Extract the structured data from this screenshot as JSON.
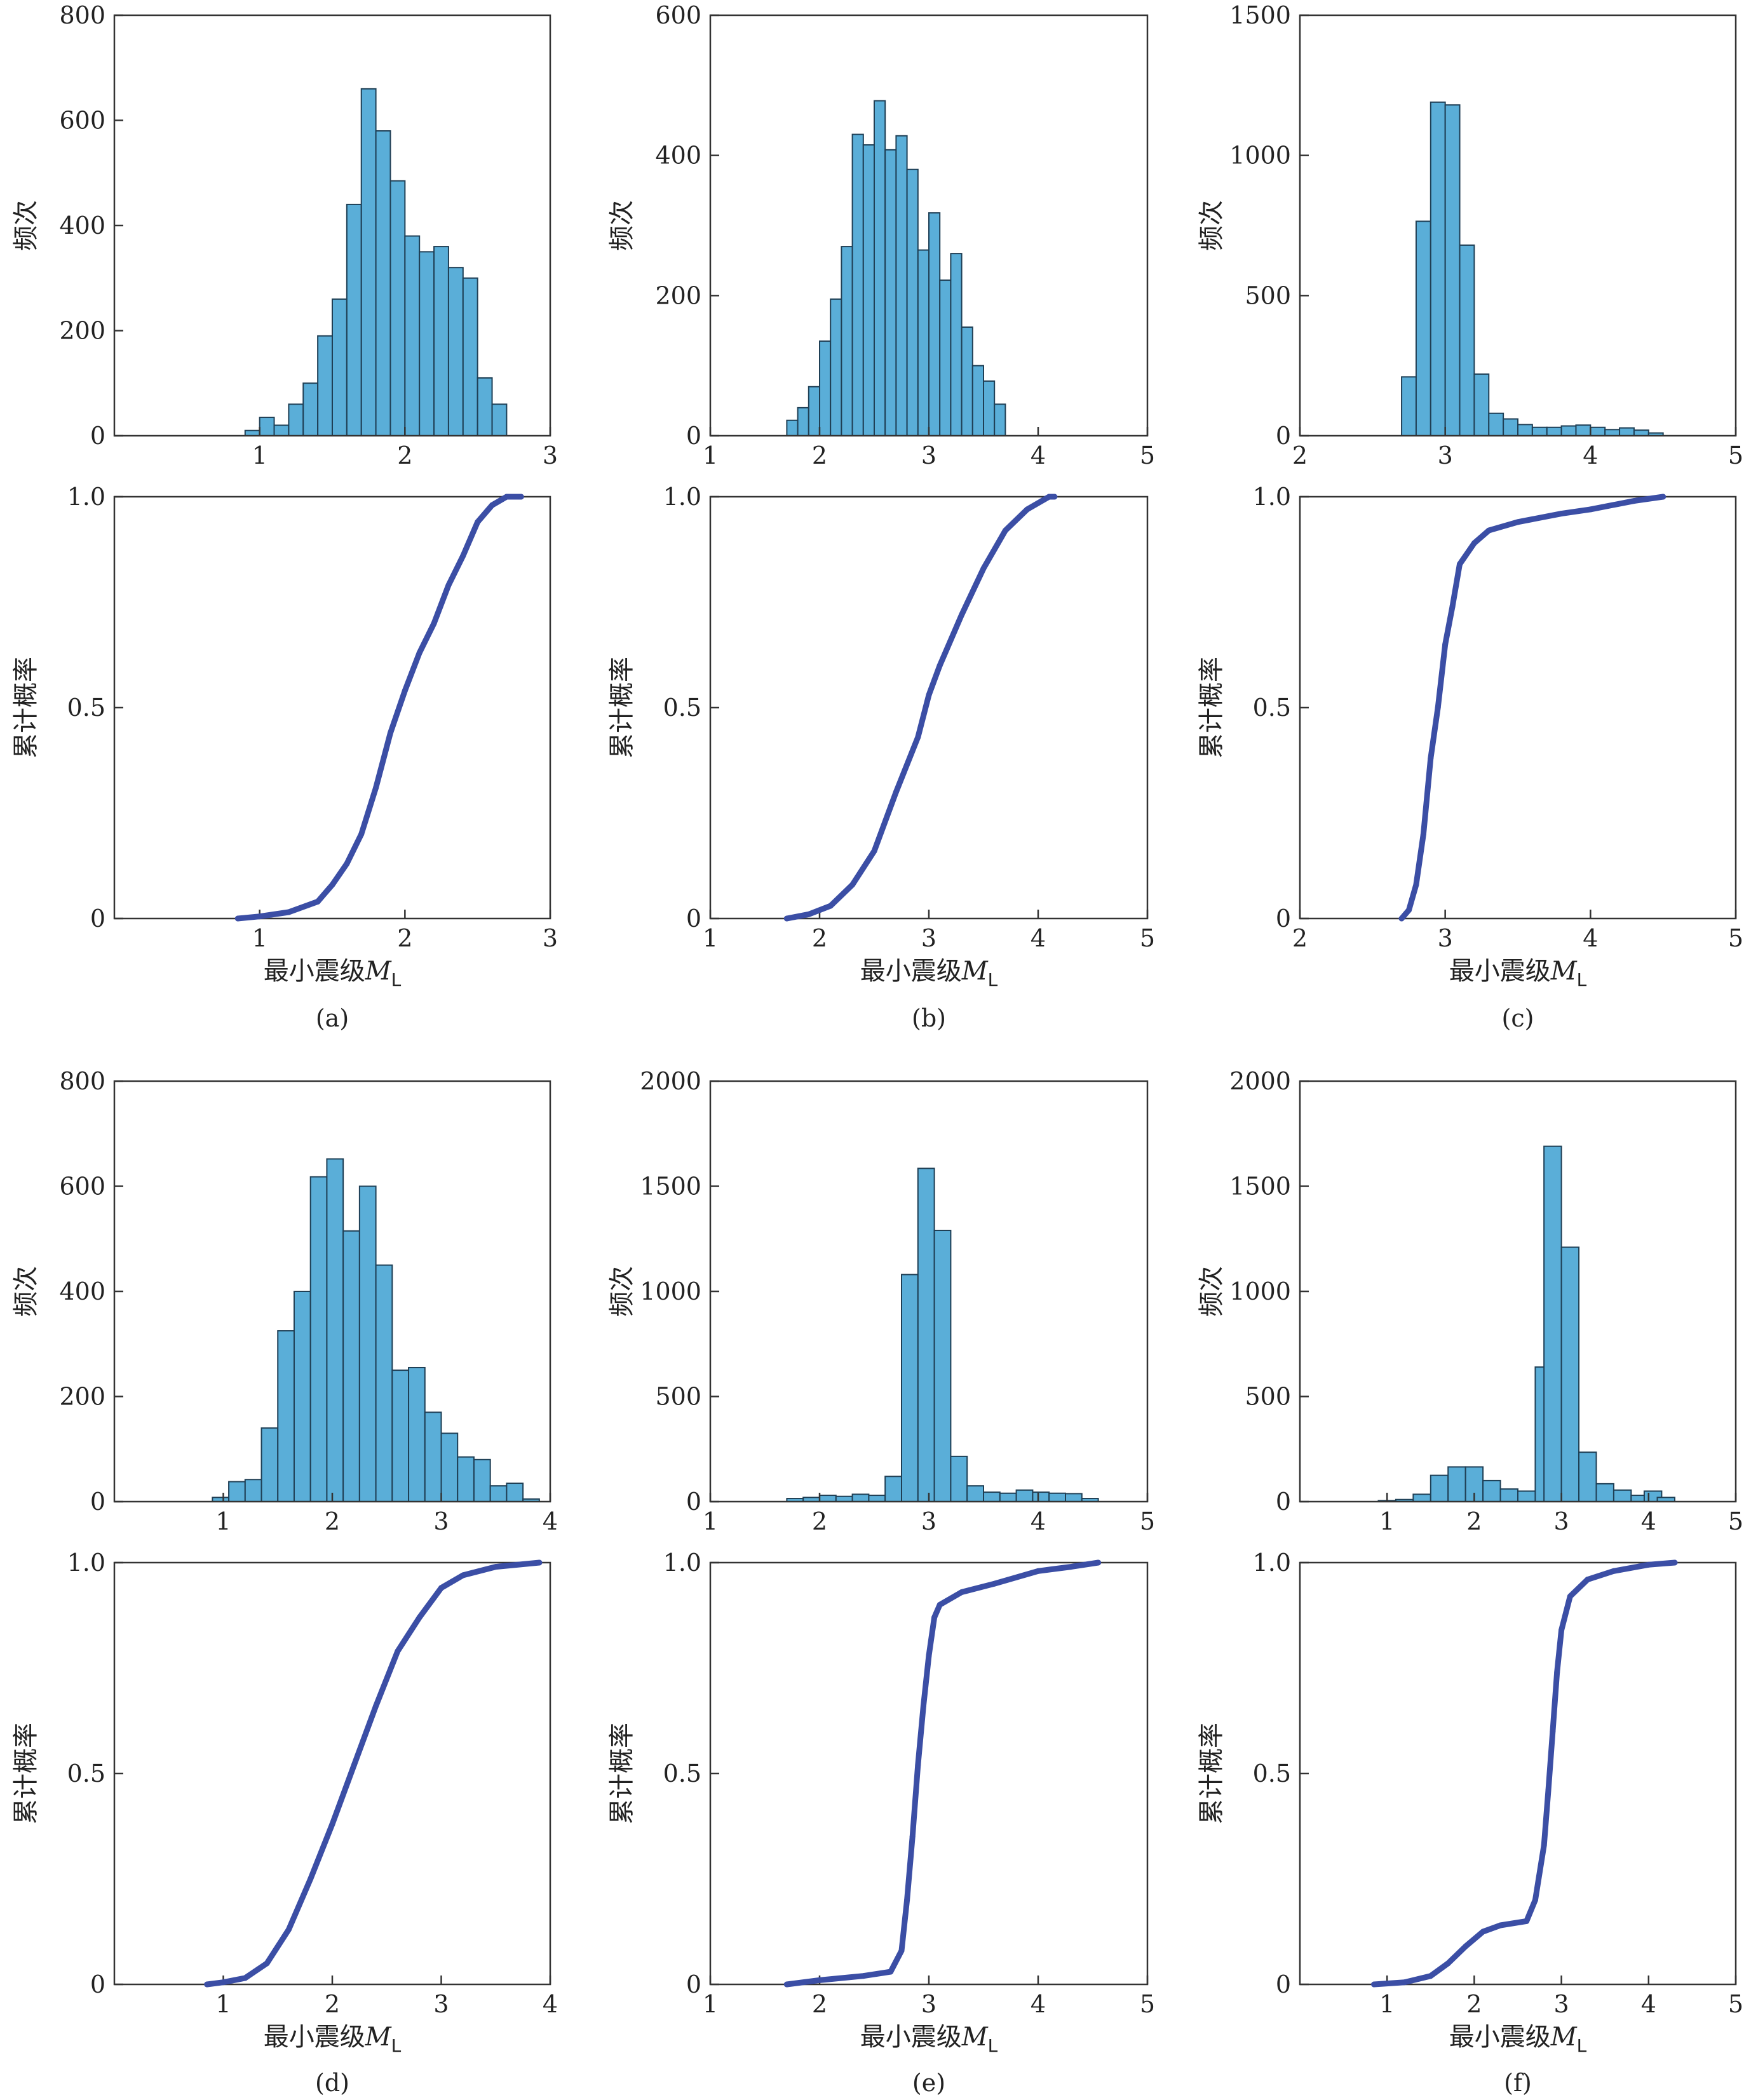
{
  "labels": {
    "hist_ylabel": "频次",
    "cdf_ylabel": "累计概率",
    "xlabel_main": "最小震级",
    "xlabel_symbol": "M",
    "xlabel_sub": "L"
  },
  "colors": {
    "bar_fill": "#5aaed8",
    "bar_edge": "#1f3f55",
    "cdf_line": "#3b4ea5"
  },
  "chart_data": [
    {
      "panel": "(a)",
      "type": "bar",
      "xlim": [
        0,
        3
      ],
      "hist": {
        "ylim": [
          0,
          800
        ],
        "yticks": [
          0,
          200,
          400,
          600,
          800
        ],
        "xticks": [
          1,
          2,
          3
        ],
        "bin_width": 0.1,
        "bins": [
          {
            "x0": 0.9,
            "value": 10
          },
          {
            "x0": 1.0,
            "value": 35
          },
          {
            "x0": 1.1,
            "value": 20
          },
          {
            "x0": 1.2,
            "value": 60
          },
          {
            "x0": 1.3,
            "value": 100
          },
          {
            "x0": 1.4,
            "value": 190
          },
          {
            "x0": 1.5,
            "value": 260
          },
          {
            "x0": 1.6,
            "value": 440
          },
          {
            "x0": 1.7,
            "value": 660
          },
          {
            "x0": 1.8,
            "value": 580
          },
          {
            "x0": 1.9,
            "value": 485
          },
          {
            "x0": 2.0,
            "value": 380
          },
          {
            "x0": 2.1,
            "value": 350
          },
          {
            "x0": 2.2,
            "value": 360
          },
          {
            "x0": 2.3,
            "value": 320
          },
          {
            "x0": 2.4,
            "value": 300
          },
          {
            "x0": 2.5,
            "value": 110
          },
          {
            "x0": 2.6,
            "value": 60
          }
        ]
      },
      "cdf": {
        "ylim": [
          0,
          1
        ],
        "yticks": [
          {
            "value": 0,
            "label": "0"
          },
          {
            "value": 0.5,
            "label": "0.5"
          },
          {
            "value": 1,
            "label": "1.0"
          }
        ],
        "xticks": [
          1,
          2,
          3
        ],
        "points": [
          [
            0.85,
            0
          ],
          [
            1.0,
            0.005
          ],
          [
            1.2,
            0.015
          ],
          [
            1.4,
            0.04
          ],
          [
            1.5,
            0.08
          ],
          [
            1.6,
            0.13
          ],
          [
            1.7,
            0.2
          ],
          [
            1.8,
            0.31
          ],
          [
            1.9,
            0.44
          ],
          [
            2.0,
            0.54
          ],
          [
            2.1,
            0.63
          ],
          [
            2.2,
            0.7
          ],
          [
            2.3,
            0.79
          ],
          [
            2.4,
            0.86
          ],
          [
            2.5,
            0.94
          ],
          [
            2.6,
            0.98
          ],
          [
            2.7,
            1.0
          ],
          [
            2.8,
            1.0
          ]
        ]
      }
    },
    {
      "panel": "(b)",
      "type": "bar",
      "xlim": [
        1,
        5
      ],
      "hist": {
        "ylim": [
          0,
          600
        ],
        "yticks": [
          0,
          200,
          400,
          600
        ],
        "xticks": [
          1,
          2,
          3,
          4,
          5
        ],
        "bin_width": 0.1,
        "bins": [
          {
            "x0": 1.7,
            "value": 22
          },
          {
            "x0": 1.8,
            "value": 40
          },
          {
            "x0": 1.9,
            "value": 70
          },
          {
            "x0": 2.0,
            "value": 135
          },
          {
            "x0": 2.1,
            "value": 195
          },
          {
            "x0": 2.2,
            "value": 270
          },
          {
            "x0": 2.3,
            "value": 430
          },
          {
            "x0": 2.4,
            "value": 415
          },
          {
            "x0": 2.5,
            "value": 478
          },
          {
            "x0": 2.6,
            "value": 408
          },
          {
            "x0": 2.7,
            "value": 428
          },
          {
            "x0": 2.8,
            "value": 380
          },
          {
            "x0": 2.9,
            "value": 265
          },
          {
            "x0": 3.0,
            "value": 318
          },
          {
            "x0": 3.1,
            "value": 222
          },
          {
            "x0": 3.2,
            "value": 260
          },
          {
            "x0": 3.3,
            "value": 155
          },
          {
            "x0": 3.4,
            "value": 100
          },
          {
            "x0": 3.5,
            "value": 78
          },
          {
            "x0": 3.6,
            "value": 45
          }
        ]
      },
      "cdf": {
        "ylim": [
          0,
          1
        ],
        "yticks": [
          {
            "value": 0,
            "label": "0"
          },
          {
            "value": 0.5,
            "label": "0.5"
          },
          {
            "value": 1,
            "label": "1.0"
          }
        ],
        "xticks": [
          1,
          2,
          3,
          4,
          5
        ],
        "points": [
          [
            1.7,
            0
          ],
          [
            1.9,
            0.01
          ],
          [
            2.1,
            0.03
          ],
          [
            2.3,
            0.08
          ],
          [
            2.5,
            0.16
          ],
          [
            2.7,
            0.3
          ],
          [
            2.9,
            0.43
          ],
          [
            3.0,
            0.53
          ],
          [
            3.1,
            0.6
          ],
          [
            3.3,
            0.72
          ],
          [
            3.5,
            0.83
          ],
          [
            3.7,
            0.92
          ],
          [
            3.9,
            0.97
          ],
          [
            4.1,
            1.0
          ],
          [
            4.15,
            1.0
          ]
        ]
      }
    },
    {
      "panel": "(c)",
      "type": "bar",
      "xlim": [
        2,
        5
      ],
      "hist": {
        "ylim": [
          0,
          1500
        ],
        "yticks": [
          0,
          500,
          1000,
          1500
        ],
        "xticks": [
          2,
          3,
          4,
          5
        ],
        "bin_width": 0.1,
        "bins": [
          {
            "x0": 2.7,
            "value": 210
          },
          {
            "x0": 2.8,
            "value": 765
          },
          {
            "x0": 2.9,
            "value": 1190
          },
          {
            "x0": 3.0,
            "value": 1180
          },
          {
            "x0": 3.1,
            "value": 680
          },
          {
            "x0": 3.2,
            "value": 220
          },
          {
            "x0": 3.3,
            "value": 80
          },
          {
            "x0": 3.4,
            "value": 60
          },
          {
            "x0": 3.5,
            "value": 40
          },
          {
            "x0": 3.6,
            "value": 30
          },
          {
            "x0": 3.7,
            "value": 30
          },
          {
            "x0": 3.8,
            "value": 35
          },
          {
            "x0": 3.9,
            "value": 38
          },
          {
            "x0": 4.0,
            "value": 30
          },
          {
            "x0": 4.1,
            "value": 22
          },
          {
            "x0": 4.2,
            "value": 28
          },
          {
            "x0": 4.3,
            "value": 20
          },
          {
            "x0": 4.4,
            "value": 10
          }
        ]
      },
      "cdf": {
        "ylim": [
          0,
          1
        ],
        "yticks": [
          {
            "value": 0,
            "label": "0"
          },
          {
            "value": 0.5,
            "label": "0.5"
          },
          {
            "value": 1,
            "label": "1.0"
          }
        ],
        "xticks": [
          2,
          3,
          4,
          5
        ],
        "points": [
          [
            2.7,
            0
          ],
          [
            2.75,
            0.02
          ],
          [
            2.8,
            0.08
          ],
          [
            2.85,
            0.2
          ],
          [
            2.9,
            0.38
          ],
          [
            2.95,
            0.5
          ],
          [
            3.0,
            0.65
          ],
          [
            3.05,
            0.74
          ],
          [
            3.1,
            0.84
          ],
          [
            3.2,
            0.89
          ],
          [
            3.3,
            0.92
          ],
          [
            3.5,
            0.94
          ],
          [
            3.8,
            0.96
          ],
          [
            4.0,
            0.97
          ],
          [
            4.3,
            0.99
          ],
          [
            4.5,
            1.0
          ]
        ]
      }
    },
    {
      "panel": "(d)",
      "type": "bar",
      "xlim": [
        0,
        4
      ],
      "hist": {
        "ylim": [
          0,
          800
        ],
        "yticks": [
          0,
          200,
          400,
          600,
          800
        ],
        "xticks": [
          1,
          2,
          3,
          4
        ],
        "bin_width": 0.15,
        "bins": [
          {
            "x0": 0.9,
            "value": 8
          },
          {
            "x0": 1.05,
            "value": 38
          },
          {
            "x0": 1.2,
            "value": 42
          },
          {
            "x0": 1.35,
            "value": 140
          },
          {
            "x0": 1.5,
            "value": 325
          },
          {
            "x0": 1.65,
            "value": 400
          },
          {
            "x0": 1.8,
            "value": 618
          },
          {
            "x0": 1.95,
            "value": 652
          },
          {
            "x0": 2.1,
            "value": 515
          },
          {
            "x0": 2.25,
            "value": 600
          },
          {
            "x0": 2.4,
            "value": 450
          },
          {
            "x0": 2.55,
            "value": 250
          },
          {
            "x0": 2.7,
            "value": 255
          },
          {
            "x0": 2.85,
            "value": 170
          },
          {
            "x0": 3.0,
            "value": 130
          },
          {
            "x0": 3.15,
            "value": 85
          },
          {
            "x0": 3.3,
            "value": 80
          },
          {
            "x0": 3.45,
            "value": 30
          },
          {
            "x0": 3.6,
            "value": 35
          },
          {
            "x0": 3.75,
            "value": 5
          }
        ]
      },
      "cdf": {
        "ylim": [
          0,
          1
        ],
        "yticks": [
          {
            "value": 0,
            "label": "0"
          },
          {
            "value": 0.5,
            "label": "0.5"
          },
          {
            "value": 1,
            "label": "1.0"
          }
        ],
        "xticks": [
          1,
          2,
          3,
          4
        ],
        "points": [
          [
            0.85,
            0
          ],
          [
            1.0,
            0.005
          ],
          [
            1.2,
            0.015
          ],
          [
            1.4,
            0.05
          ],
          [
            1.6,
            0.13
          ],
          [
            1.8,
            0.25
          ],
          [
            2.0,
            0.38
          ],
          [
            2.2,
            0.52
          ],
          [
            2.4,
            0.66
          ],
          [
            2.6,
            0.79
          ],
          [
            2.8,
            0.87
          ],
          [
            3.0,
            0.94
          ],
          [
            3.2,
            0.97
          ],
          [
            3.5,
            0.99
          ],
          [
            3.9,
            1.0
          ]
        ]
      }
    },
    {
      "panel": "(e)",
      "type": "bar",
      "xlim": [
        1,
        5
      ],
      "hist": {
        "ylim": [
          0,
          2000
        ],
        "yticks": [
          0,
          500,
          1000,
          1500,
          2000
        ],
        "xticks": [
          1,
          2,
          3,
          4,
          5
        ],
        "bin_width": 0.15,
        "bins": [
          {
            "x0": 1.7,
            "value": 15
          },
          {
            "x0": 1.85,
            "value": 20
          },
          {
            "x0": 2.0,
            "value": 30
          },
          {
            "x0": 2.15,
            "value": 25
          },
          {
            "x0": 2.3,
            "value": 35
          },
          {
            "x0": 2.45,
            "value": 30
          },
          {
            "x0": 2.6,
            "value": 120
          },
          {
            "x0": 2.75,
            "value": 1080
          },
          {
            "x0": 2.9,
            "value": 1585
          },
          {
            "x0": 3.05,
            "value": 1290
          },
          {
            "x0": 3.2,
            "value": 215
          },
          {
            "x0": 3.35,
            "value": 75
          },
          {
            "x0": 3.5,
            "value": 45
          },
          {
            "x0": 3.65,
            "value": 40
          },
          {
            "x0": 3.8,
            "value": 55
          },
          {
            "x0": 3.95,
            "value": 45
          },
          {
            "x0": 4.1,
            "value": 40
          },
          {
            "x0": 4.25,
            "value": 38
          },
          {
            "x0": 4.4,
            "value": 15
          }
        ]
      },
      "cdf": {
        "ylim": [
          0,
          1
        ],
        "yticks": [
          {
            "value": 0,
            "label": "0"
          },
          {
            "value": 0.5,
            "label": "0.5"
          },
          {
            "value": 1,
            "label": "1.0"
          }
        ],
        "xticks": [
          1,
          2,
          3,
          4,
          5
        ],
        "points": [
          [
            1.7,
            0
          ],
          [
            2.0,
            0.01
          ],
          [
            2.4,
            0.02
          ],
          [
            2.65,
            0.03
          ],
          [
            2.75,
            0.08
          ],
          [
            2.8,
            0.2
          ],
          [
            2.85,
            0.35
          ],
          [
            2.9,
            0.52
          ],
          [
            2.95,
            0.66
          ],
          [
            3.0,
            0.78
          ],
          [
            3.05,
            0.87
          ],
          [
            3.1,
            0.9
          ],
          [
            3.3,
            0.93
          ],
          [
            3.6,
            0.95
          ],
          [
            4.0,
            0.98
          ],
          [
            4.3,
            0.99
          ],
          [
            4.55,
            1.0
          ]
        ]
      }
    },
    {
      "panel": "(f)",
      "type": "bar",
      "xlim": [
        0,
        5
      ],
      "hist": {
        "ylim": [
          0,
          2000
        ],
        "yticks": [
          0,
          500,
          1000,
          1500,
          2000
        ],
        "xticks": [
          1,
          2,
          3,
          4,
          5
        ],
        "bin_width": 0.2,
        "bins": [
          {
            "x0": 0.9,
            "value": 5
          },
          {
            "x0": 1.1,
            "value": 10
          },
          {
            "x0": 1.3,
            "value": 35
          },
          {
            "x0": 1.5,
            "value": 125
          },
          {
            "x0": 1.7,
            "value": 165
          },
          {
            "x0": 1.9,
            "value": 165
          },
          {
            "x0": 2.1,
            "value": 100
          },
          {
            "x0": 2.3,
            "value": 60
          },
          {
            "x0": 2.5,
            "value": 50
          },
          {
            "x0": 2.7,
            "value": 640
          },
          {
            "x0": 2.8,
            "value": 1690
          },
          {
            "x0": 3.0,
            "value": 1210
          },
          {
            "x0": 3.2,
            "value": 235
          },
          {
            "x0": 3.4,
            "value": 85
          },
          {
            "x0": 3.6,
            "value": 55
          },
          {
            "x0": 3.8,
            "value": 30
          },
          {
            "x0": 3.95,
            "value": 50
          },
          {
            "x0": 4.1,
            "value": 20
          }
        ]
      },
      "cdf": {
        "ylim": [
          0,
          1
        ],
        "yticks": [
          {
            "value": 0,
            "label": "0"
          },
          {
            "value": 0.5,
            "label": "0.5"
          },
          {
            "value": 1,
            "label": "1.0"
          }
        ],
        "xticks": [
          1,
          2,
          3,
          4,
          5
        ],
        "points": [
          [
            0.85,
            0
          ],
          [
            1.2,
            0.005
          ],
          [
            1.5,
            0.02
          ],
          [
            1.7,
            0.05
          ],
          [
            1.9,
            0.09
          ],
          [
            2.1,
            0.125
          ],
          [
            2.3,
            0.14
          ],
          [
            2.6,
            0.15
          ],
          [
            2.7,
            0.2
          ],
          [
            2.8,
            0.33
          ],
          [
            2.85,
            0.46
          ],
          [
            2.9,
            0.6
          ],
          [
            2.95,
            0.74
          ],
          [
            3.0,
            0.84
          ],
          [
            3.1,
            0.92
          ],
          [
            3.3,
            0.96
          ],
          [
            3.6,
            0.98
          ],
          [
            4.0,
            0.995
          ],
          [
            4.3,
            1.0
          ]
        ]
      }
    }
  ]
}
